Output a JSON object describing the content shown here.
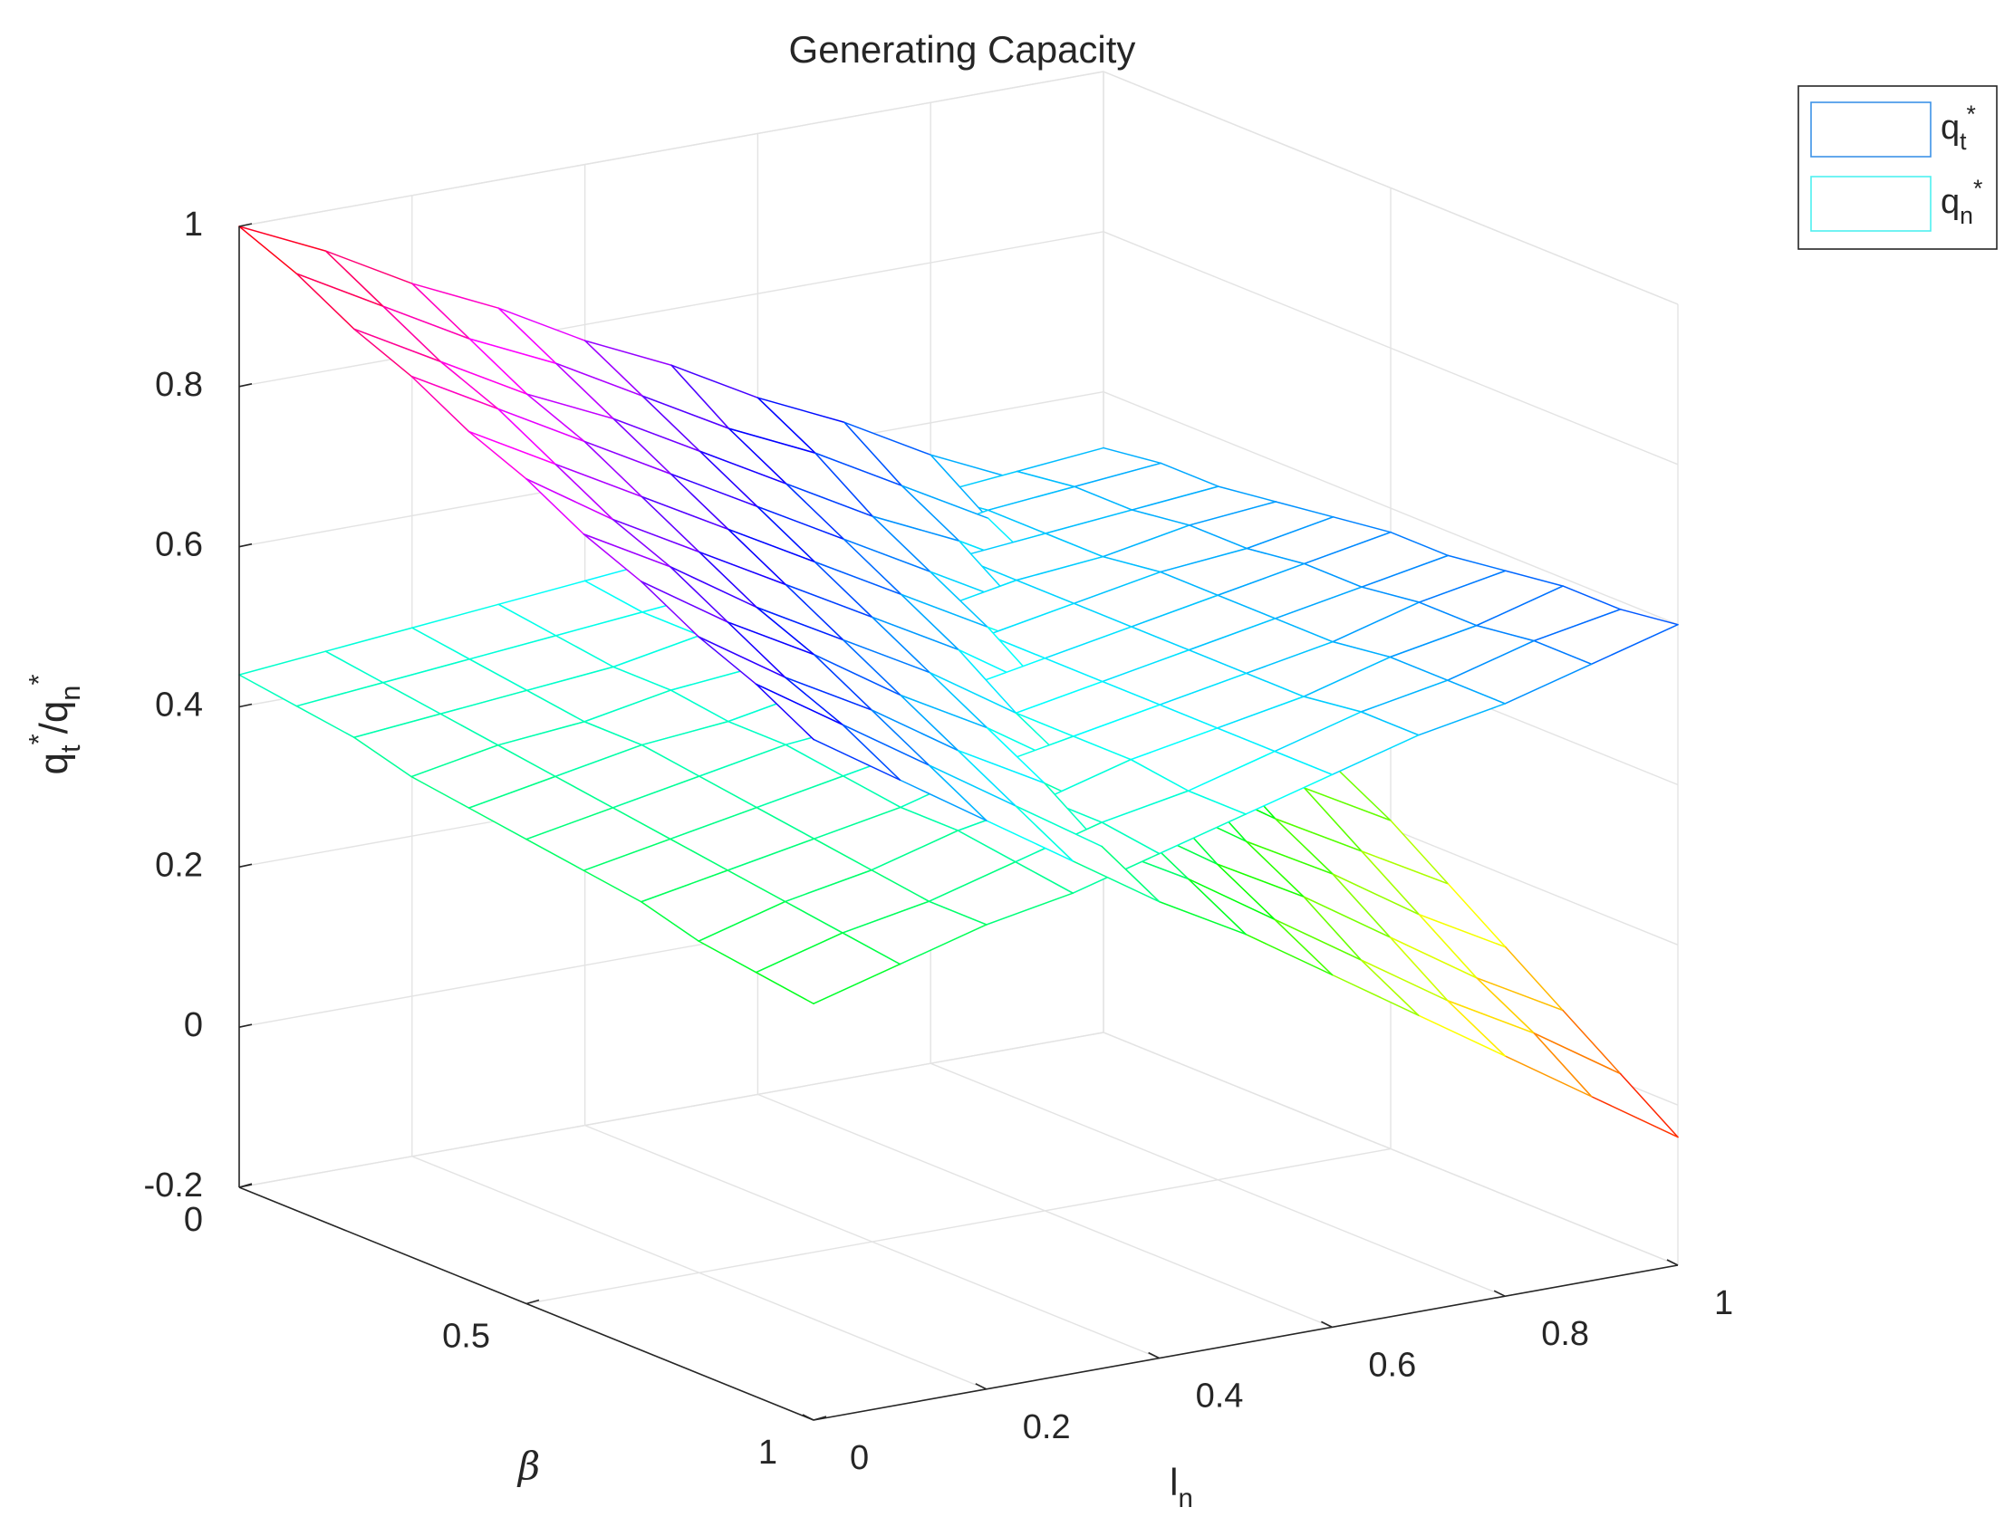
{
  "chart_data": {
    "type": "mesh3d",
    "title": "Generating Capacity",
    "xlabel": "l_n",
    "ylabel": "β",
    "zlabel": "q_t^*/q_n^*",
    "xlim": [
      0,
      1
    ],
    "xticks": [
      0,
      0.2,
      0.4,
      0.6,
      0.8,
      1
    ],
    "ylim": [
      0,
      1
    ],
    "yticks": [
      0,
      0.5,
      1
    ],
    "zlim": [
      -0.2,
      1
    ],
    "zticks": [
      -0.2,
      0,
      0.2,
      0.4,
      0.6,
      0.8,
      1
    ],
    "grid": true,
    "colormap": "hsv",
    "legend_position": "outside-top-right",
    "x": [
      0,
      0.1,
      0.2,
      0.3,
      0.4,
      0.5,
      0.6,
      0.7,
      0.8,
      0.9,
      1
    ],
    "y": [
      0,
      0.1,
      0.2,
      0.3,
      0.4,
      0.5,
      0.6,
      0.7,
      0.8,
      0.9,
      1
    ],
    "series": [
      {
        "name": "q_t^*",
        "color": "#3d93e8",
        "z": [
          [
            1,
            0.95,
            0.89,
            0.84,
            0.78,
            0.73,
            0.67,
            0.62,
            0.56,
            0.51,
            0.45
          ],
          [
            0.97,
            0.91,
            0.85,
            0.8,
            0.74,
            0.68,
            0.63,
            0.57,
            0.51,
            0.46,
            0.4
          ],
          [
            0.93,
            0.87,
            0.81,
            0.76,
            0.7,
            0.64,
            0.58,
            0.53,
            0.47,
            0.41,
            0.35
          ],
          [
            0.9,
            0.84,
            0.78,
            0.72,
            0.66,
            0.6,
            0.54,
            0.48,
            0.42,
            0.36,
            0.3
          ],
          [
            0.86,
            0.8,
            0.74,
            0.68,
            0.62,
            0.56,
            0.5,
            0.44,
            0.38,
            0.31,
            0.25
          ],
          [
            0.83,
            0.76,
            0.7,
            0.64,
            0.58,
            0.52,
            0.45,
            0.39,
            0.33,
            0.27,
            0.21
          ],
          [
            0.79,
            0.73,
            0.66,
            0.6,
            0.54,
            0.47,
            0.41,
            0.35,
            0.28,
            0.22,
            0.16
          ],
          [
            0.76,
            0.69,
            0.63,
            0.56,
            0.5,
            0.43,
            0.37,
            0.3,
            0.24,
            0.17,
            0.11
          ],
          [
            0.72,
            0.65,
            0.59,
            0.52,
            0.46,
            0.39,
            0.32,
            0.26,
            0.19,
            0.12,
            0.06
          ],
          [
            0.69,
            0.62,
            0.55,
            0.48,
            0.41,
            0.35,
            0.28,
            0.21,
            0.14,
            0.08,
            0.01
          ],
          [
            0.65,
            0.58,
            0.51,
            0.44,
            0.37,
            0.31,
            0.24,
            0.17,
            0.1,
            0.03,
            -0.04
          ]
        ]
      },
      {
        "name": "q_n^*",
        "color": "#4ef0f0",
        "z": [
          [
            0.44,
            0.45,
            0.46,
            0.47,
            0.48,
            0.49,
            0.49,
            0.5,
            0.51,
            0.52,
            0.53
          ],
          [
            0.43,
            0.44,
            0.45,
            0.46,
            0.47,
            0.48,
            0.49,
            0.5,
            0.52,
            0.53,
            0.54
          ],
          [
            0.42,
            0.43,
            0.44,
            0.45,
            0.47,
            0.48,
            0.49,
            0.51,
            0.52,
            0.53,
            0.54
          ],
          [
            0.4,
            0.42,
            0.43,
            0.45,
            0.46,
            0.48,
            0.49,
            0.51,
            0.52,
            0.54,
            0.55
          ],
          [
            0.39,
            0.41,
            0.43,
            0.44,
            0.46,
            0.48,
            0.49,
            0.51,
            0.53,
            0.54,
            0.56
          ],
          [
            0.38,
            0.4,
            0.42,
            0.44,
            0.45,
            0.47,
            0.49,
            0.51,
            0.53,
            0.55,
            0.57
          ],
          [
            0.37,
            0.39,
            0.41,
            0.43,
            0.45,
            0.47,
            0.49,
            0.51,
            0.53,
            0.55,
            0.57
          ],
          [
            0.36,
            0.38,
            0.4,
            0.42,
            0.45,
            0.47,
            0.49,
            0.51,
            0.53,
            0.56,
            0.58
          ],
          [
            0.34,
            0.37,
            0.39,
            0.42,
            0.44,
            0.47,
            0.49,
            0.51,
            0.54,
            0.56,
            0.59
          ],
          [
            0.33,
            0.36,
            0.38,
            0.41,
            0.44,
            0.46,
            0.49,
            0.52,
            0.54,
            0.57,
            0.59
          ],
          [
            0.32,
            0.35,
            0.38,
            0.4,
            0.43,
            0.46,
            0.49,
            0.52,
            0.54,
            0.57,
            0.6
          ]
        ]
      }
    ]
  }
}
